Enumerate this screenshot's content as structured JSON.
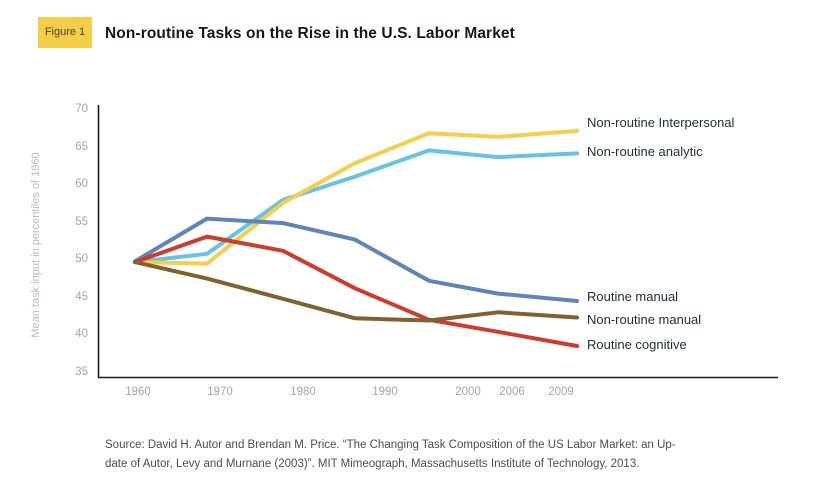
{
  "header": {
    "figure_label": "Figure 1",
    "title": "Non-routine Tasks on the Rise in the U.S. Labor Market"
  },
  "colors": {
    "badge_bg": "#F5CE46",
    "axis": "#1b1b1b"
  },
  "chart_data": {
    "type": "line",
    "title": "Non-routine Tasks on the Rise in the U.S. Labor Market",
    "xlabel": "",
    "ylabel": "Mean task input in percentiles of 1960",
    "ylim": [
      35,
      70
    ],
    "y_ticks": [
      70,
      65,
      60,
      55,
      50,
      45,
      40,
      35
    ],
    "x_tick_labels": [
      "1960",
      "1970",
      "1980",
      "1990",
      "2000",
      "2006",
      "2009"
    ],
    "categories": [
      1960,
      1970,
      1980,
      1990,
      2000,
      2006,
      2009
    ],
    "grid": false,
    "legend_position": "right-of-line-ends",
    "series": [
      {
        "name": "Non-routine Interpersonal",
        "color": "#F6CE4B",
        "values": [
          49.6,
          49.4,
          57.5,
          62.8,
          66.8,
          66.3,
          67.1
        ]
      },
      {
        "name": "Non-routine analytic",
        "color": "#66C3E6",
        "values": [
          49.6,
          50.7,
          57.9,
          61.0,
          64.5,
          63.6,
          64.1
        ]
      },
      {
        "name": "Routine manual",
        "color": "#5F83BC",
        "values": [
          49.7,
          55.4,
          54.8,
          52.6,
          47.1,
          45.4,
          44.4
        ]
      },
      {
        "name": "Non-routine manual",
        "color": "#80612F",
        "values": [
          49.6,
          47.4,
          44.7,
          42.1,
          41.8,
          42.9,
          42.2
        ]
      },
      {
        "name": "Routine cognitive",
        "color": "#D03B2B",
        "values": [
          49.6,
          53.0,
          51.1,
          46.1,
          41.9,
          40.3,
          38.4
        ]
      }
    ]
  },
  "source": {
    "line1": "Source: David H. Autor and Brendan M. Price. “The Changing Task Composition of the US Labor Market: an Up-",
    "line2": "date of Autor, Levy and Murnane (2003)”. MIT Mimeograph, Massachusetts Institute of Technology, 2013."
  }
}
